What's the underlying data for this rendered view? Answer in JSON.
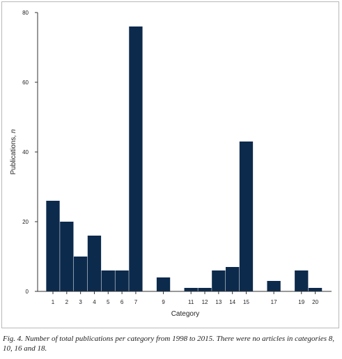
{
  "chart_data": {
    "type": "bar",
    "categories": [
      "1",
      "2",
      "3",
      "4",
      "5",
      "6",
      "7",
      "8",
      "9",
      "10",
      "11",
      "12",
      "13",
      "14",
      "15",
      "16",
      "17",
      "18",
      "19",
      "20"
    ],
    "values": [
      26,
      20,
      10,
      16,
      6,
      6,
      76,
      0,
      4,
      0,
      1,
      1,
      6,
      7,
      43,
      0,
      3,
      0,
      6,
      1
    ],
    "x_tick_labels": [
      "1",
      "2",
      "3",
      "4",
      "5",
      "6",
      "7",
      "9",
      "11",
      "12",
      "13",
      "14",
      "15",
      "17",
      "19",
      "20"
    ],
    "xlabel": "Category",
    "ylabel": "Publications, n",
    "ylim": [
      0,
      80
    ],
    "y_ticks": [
      0,
      20,
      40,
      60,
      80
    ],
    "grid": false,
    "bar_color": "#0c2a4c"
  },
  "caption": "Fig. 4. Number of total publications per category from 1998 to 2015. There were no articles in categories 8, 10, 16 and 18."
}
